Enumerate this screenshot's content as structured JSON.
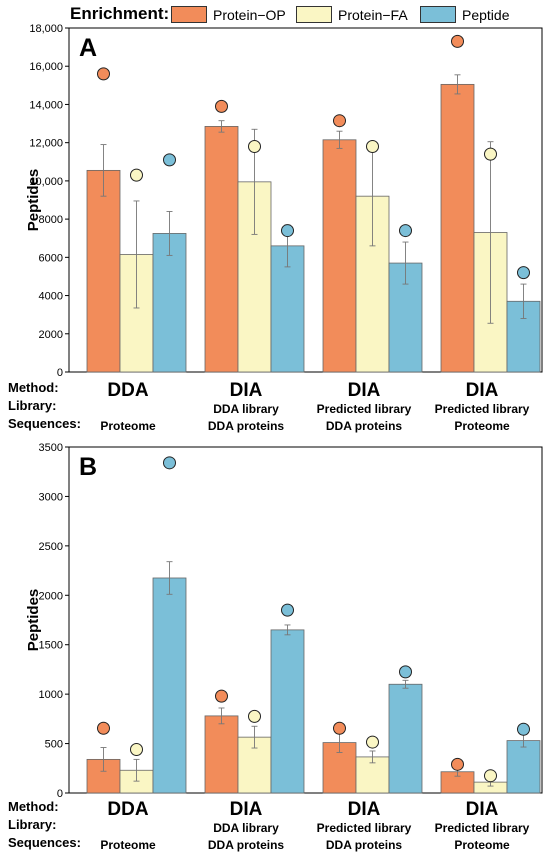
{
  "legend": {
    "title": "Enrichment:",
    "items": [
      {
        "label": "Protein−OP",
        "color": "#F28C5A"
      },
      {
        "label": "Protein−FA",
        "color": "#FAF6C4"
      },
      {
        "label": "Peptide",
        "color": "#7BBFD8"
      }
    ]
  },
  "row_labels": {
    "method": "Method:",
    "library": "Library:",
    "sequences": "Sequences:"
  },
  "groups": [
    {
      "method": "DDA",
      "library": "",
      "sequences": "Proteome"
    },
    {
      "method": "DIA",
      "library": "DDA library",
      "sequences": "DDA proteins"
    },
    {
      "method": "DIA",
      "library": "Predicted library",
      "sequences": "DDA proteins"
    },
    {
      "method": "DIA",
      "library": "Predicted library",
      "sequences": "Proteome"
    }
  ],
  "chart_data": [
    {
      "type": "bar",
      "panel": "A",
      "ylabel": "Peptides",
      "ylim": [
        0,
        18000
      ],
      "yticks": [
        0,
        2000,
        4000,
        6000,
        8000,
        10000,
        12000,
        14000,
        16000,
        18000
      ],
      "ytick_labels": [
        "0",
        "2000",
        "4000",
        "6000",
        "8000",
        "10,000",
        "12,000",
        "14,000",
        "16,000",
        "18,000"
      ],
      "categories": [
        "DDA",
        "DIA",
        "DIA",
        "DIA"
      ],
      "series": [
        {
          "name": "Protein−OP",
          "color": "#F28C5A",
          "values": [
            10550,
            12850,
            12150,
            15050
          ],
          "errors": [
            1350,
            300,
            450,
            500
          ],
          "markers": [
            15600,
            13900,
            13150,
            17300
          ]
        },
        {
          "name": "Protein−FA",
          "color": "#FAF6C4",
          "values": [
            6150,
            9950,
            9200,
            7300
          ],
          "errors": [
            2800,
            2750,
            2600,
            4750
          ],
          "markers": [
            10300,
            11800,
            11800,
            11400
          ]
        },
        {
          "name": "Peptide",
          "color": "#7BBFD8",
          "values": [
            7250,
            6600,
            5700,
            3700
          ],
          "errors": [
            1150,
            1100,
            1100,
            900
          ],
          "markers": [
            11100,
            7400,
            7400,
            5200
          ]
        }
      ]
    },
    {
      "type": "bar",
      "panel": "B",
      "ylabel": "Peptides",
      "ylim": [
        0,
        3500
      ],
      "yticks": [
        0,
        500,
        1000,
        1500,
        2000,
        2500,
        3000,
        3500
      ],
      "ytick_labels": [
        "0",
        "500",
        "1000",
        "1500",
        "2000",
        "2500",
        "3000",
        "3500"
      ],
      "categories": [
        "DDA",
        "DIA",
        "DIA",
        "DIA"
      ],
      "series": [
        {
          "name": "Protein−OP",
          "color": "#F28C5A",
          "values": [
            340,
            780,
            510,
            215
          ],
          "errors": [
            120,
            80,
            100,
            45
          ],
          "markers": [
            655,
            980,
            655,
            290
          ]
        },
        {
          "name": "Protein−FA",
          "color": "#FAF6C4",
          "values": [
            230,
            565,
            365,
            110
          ],
          "errors": [
            110,
            110,
            60,
            40
          ],
          "markers": [
            440,
            775,
            515,
            175
          ]
        },
        {
          "name": "Peptide",
          "color": "#7BBFD8",
          "values": [
            2175,
            1650,
            1100,
            530
          ],
          "errors": [
            165,
            50,
            40,
            65
          ],
          "markers": [
            3340,
            1850,
            1225,
            645
          ]
        }
      ]
    }
  ]
}
